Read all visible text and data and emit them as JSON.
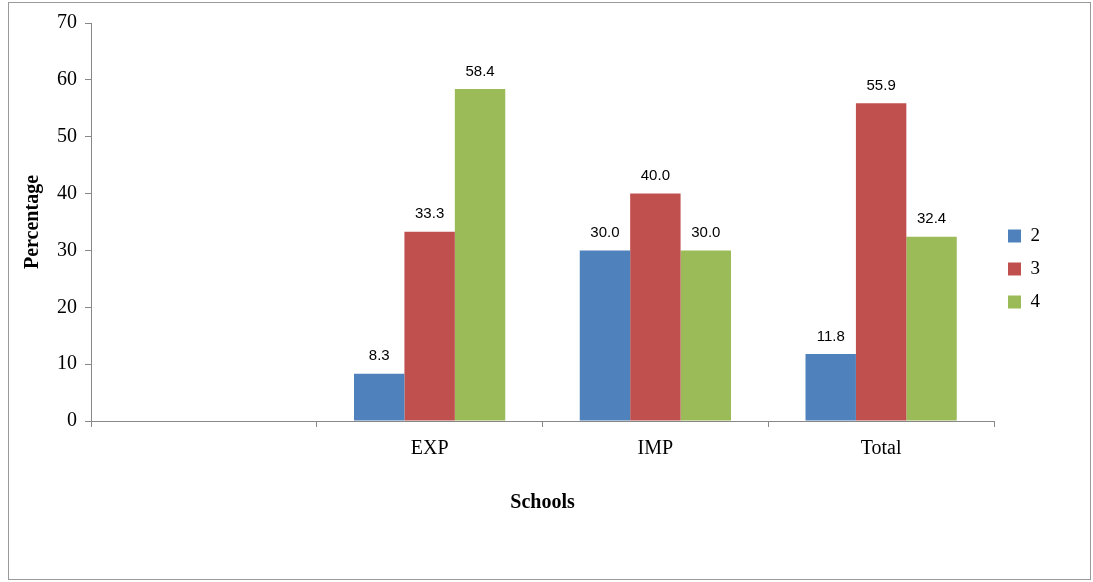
{
  "chart_data": {
    "type": "bar",
    "xlabel": "Schools",
    "ylabel": "Percentage",
    "categories": [
      null,
      "EXP",
      "IMP",
      "Total"
    ],
    "series": [
      {
        "name": "2",
        "color": "#4f81bd",
        "values": [
          null,
          8.3,
          30.0,
          11.8
        ],
        "value_labels": [
          null,
          "8.3",
          "30.0",
          "11.8"
        ]
      },
      {
        "name": "3",
        "color": "#c0504d",
        "values": [
          null,
          33.3,
          40.0,
          55.9
        ],
        "value_labels": [
          null,
          "33.3",
          "40.0",
          "55.9"
        ]
      },
      {
        "name": "4",
        "color": "#9bbb59",
        "values": [
          null,
          58.4,
          30.0,
          32.4
        ],
        "value_labels": [
          null,
          "58.4",
          "30.0",
          "32.4"
        ]
      }
    ],
    "ylim": [
      0,
      70
    ],
    "yticks": [
      0,
      10,
      20,
      30,
      40,
      50,
      60,
      70
    ],
    "grid": false,
    "legend": "right"
  }
}
